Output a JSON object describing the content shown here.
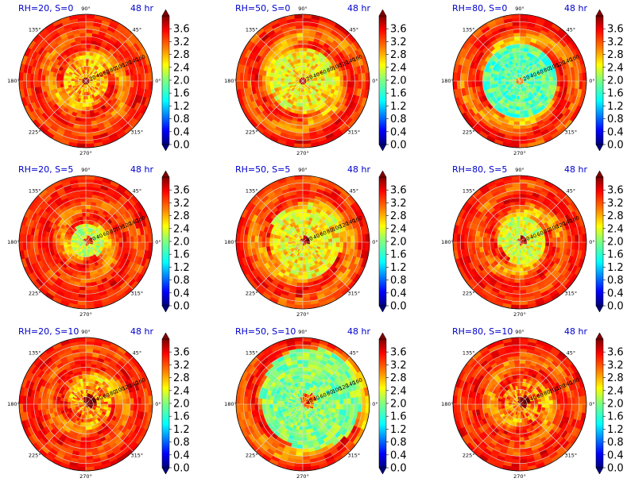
{
  "chart_data": {
    "type": "polar-contour-grid",
    "time_label": "48 hr",
    "angular_ticks": [
      "0°",
      "45°",
      "90°",
      "135°",
      "180°",
      "225°",
      "270°",
      "315°"
    ],
    "radial_ticks": [
      "20",
      "40",
      "60",
      "80",
      "100",
      "120",
      "140",
      "160"
    ],
    "radial_max": 180,
    "colorbar": {
      "colormap": "jet",
      "vmin": 0.0,
      "vmax": 4.0,
      "ticks": [
        "0.0",
        "0.4",
        "0.8",
        "1.2",
        "1.6",
        "2.0",
        "2.4",
        "2.8",
        "3.2",
        "3.6"
      ],
      "extend": "both"
    },
    "panels": [
      {
        "row": 0,
        "col": 0,
        "title": "RH=20, S=0",
        "time": "48 hr",
        "core_level": 2.9,
        "core_radius": 0.35,
        "shear_shift": 0.0
      },
      {
        "row": 0,
        "col": 1,
        "title": "RH=50, S=0",
        "time": "48 hr",
        "core_level": 2.6,
        "core_radius": 0.5,
        "shear_shift": 0.0
      },
      {
        "row": 0,
        "col": 2,
        "title": "RH=80, S=0",
        "time": "48 hr",
        "core_level": 1.8,
        "core_radius": 0.55,
        "shear_shift": 0.0
      },
      {
        "row": 1,
        "col": 0,
        "title": "RH=20, S=5",
        "time": "48 hr",
        "core_level": 2.3,
        "core_radius": 0.25,
        "shear_shift": 0.1
      },
      {
        "row": 1,
        "col": 1,
        "title": "RH=50, S=5",
        "time": "48 hr",
        "core_level": 2.6,
        "core_radius": 0.55,
        "shear_shift": 0.1
      },
      {
        "row": 1,
        "col": 2,
        "title": "RH=80, S=5",
        "time": "48 hr",
        "core_level": 2.4,
        "core_radius": 0.35,
        "shear_shift": 0.1
      },
      {
        "row": 2,
        "col": 0,
        "title": "RH=20, S=10",
        "time": "48 hr",
        "core_level": 3.0,
        "core_radius": 0.3,
        "shear_shift": 0.25
      },
      {
        "row": 2,
        "col": 1,
        "title": "RH=50, S=10",
        "time": "48 hr",
        "core_level": 2.0,
        "core_radius": 0.75,
        "shear_shift": 0.3
      },
      {
        "row": 2,
        "col": 2,
        "title": "RH=80, S=10",
        "time": "48 hr",
        "core_level": 3.1,
        "core_radius": 0.3,
        "shear_shift": 0.2
      }
    ]
  }
}
